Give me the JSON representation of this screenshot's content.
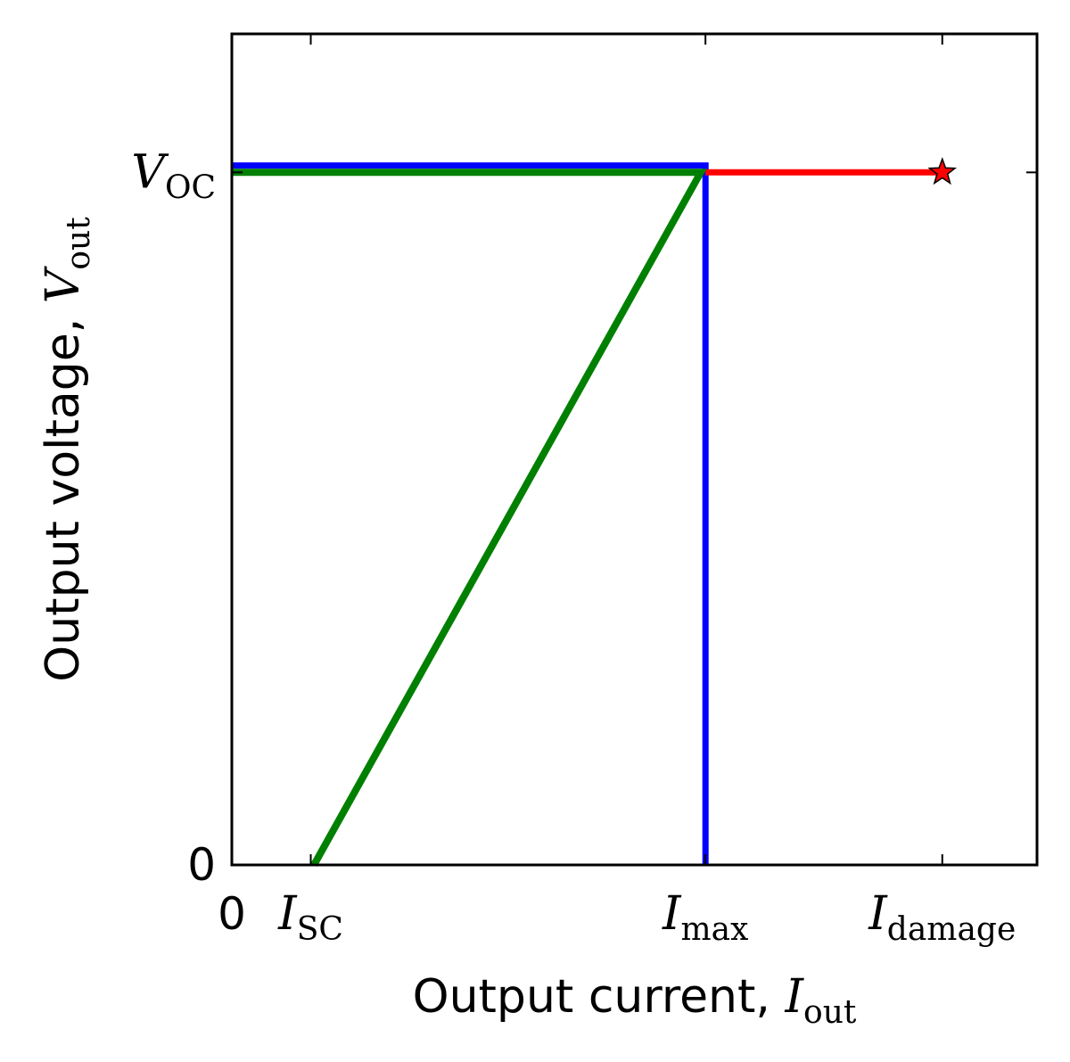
{
  "chart_data": {
    "type": "line",
    "title": "",
    "xlabel": {
      "text": "Output current, ",
      "symbol": "I",
      "sub": "out"
    },
    "ylabel": {
      "text": "Output voltage, ",
      "symbol": "V",
      "sub": "out"
    },
    "xlim": [
      0,
      5.1
    ],
    "ylim": [
      0,
      1.2
    ],
    "grid": false,
    "x_ticks": [
      {
        "value": 0,
        "label": "0",
        "symbol": "",
        "sub": ""
      },
      {
        "value": 0.5,
        "label": "",
        "symbol": "I",
        "sub": "SC"
      },
      {
        "value": 3.0,
        "label": "",
        "symbol": "I",
        "sub": "max"
      },
      {
        "value": 4.5,
        "label": "",
        "symbol": "I",
        "sub": "damage"
      }
    ],
    "y_ticks": [
      {
        "value": 0,
        "label": "0",
        "symbol": "",
        "sub": ""
      },
      {
        "value": 1.0,
        "label": "",
        "symbol": "V",
        "sub": "OC"
      }
    ],
    "series": [
      {
        "color": "#0000ff",
        "width": 7,
        "points": [
          [
            0,
            1.01
          ],
          [
            3.0,
            1.01
          ],
          [
            3.0,
            0
          ]
        ]
      },
      {
        "color": "#ff0000",
        "width": 7,
        "points": [
          [
            3.0,
            1.0
          ],
          [
            4.5,
            1.0
          ]
        ]
      },
      {
        "color": "#008000",
        "width": 8,
        "points": [
          [
            0,
            1.0
          ],
          [
            2.97,
            1.0
          ],
          [
            0.52,
            0
          ]
        ]
      }
    ],
    "markers": [
      {
        "shape": "star",
        "x": 4.5,
        "y": 1.0,
        "color": "#ff0000"
      }
    ]
  }
}
